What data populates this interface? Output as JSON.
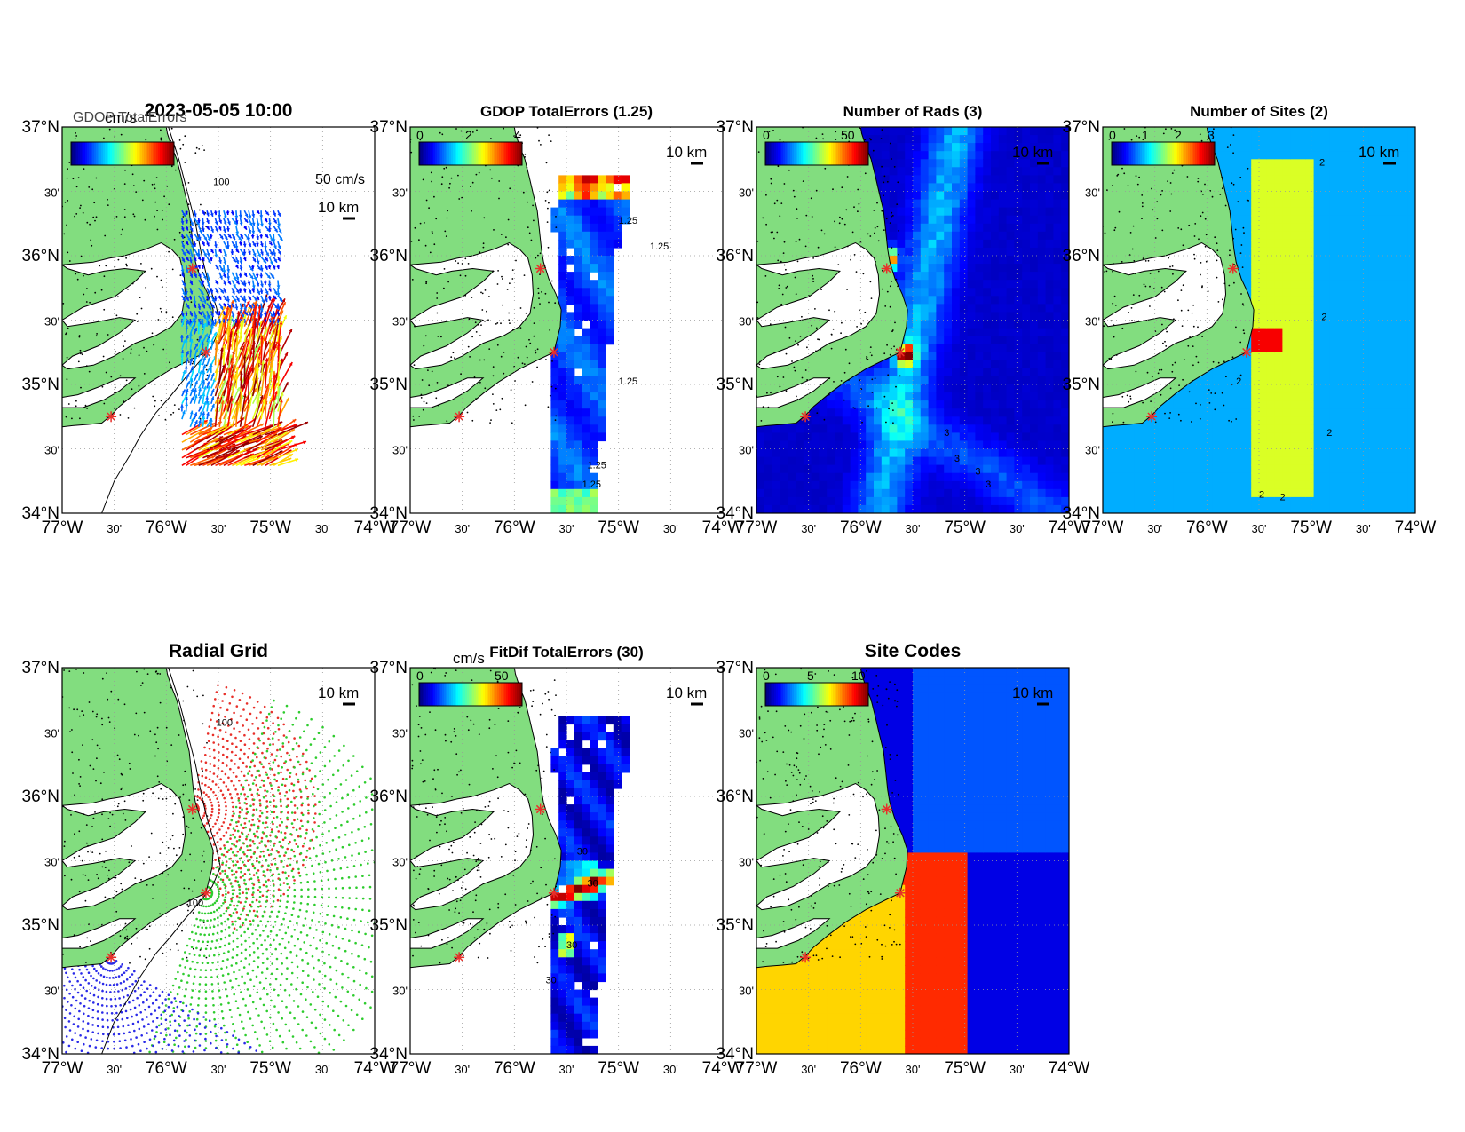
{
  "figure": {
    "panels": [
      {
        "id": "currents",
        "title": "2023-05-05 10:00",
        "title_overlap": "GDOP TotalErrors",
        "colorbar_unit": "cm/s",
        "colorbar_ticks": [],
        "scale_vector_label": "50 cm/s",
        "scale_bar_label": "10 km",
        "contour_labels": [
          "100"
        ],
        "colormap": "jet",
        "field": "vectors"
      },
      {
        "id": "gdop",
        "title": "GDOP TotalErrors (1.25)",
        "colorbar_unit": "",
        "colorbar_ticks": [
          "0",
          "2",
          "4"
        ],
        "scale_bar_label": "10 km",
        "contour_labels": [
          "1.25",
          "1.25",
          "1.25",
          "1.25",
          "1.25"
        ],
        "colormap": "jet",
        "field": "gdop"
      },
      {
        "id": "nrads",
        "title": "Number of Rads (3)",
        "colorbar_unit": "",
        "colorbar_ticks": [
          "0",
          "50"
        ],
        "scale_bar_label": "10 km",
        "contour_labels": [
          "3",
          "3",
          "3",
          "3"
        ],
        "colormap": "jet",
        "field": "nrads"
      },
      {
        "id": "nsites",
        "title": "Number of Sites (2)",
        "colorbar_unit": "",
        "colorbar_ticks": [
          "0",
          "1",
          "2",
          "3"
        ],
        "scale_bar_label": "10 km",
        "contour_labels": [
          "2",
          "2",
          "2",
          "2",
          "2",
          "2"
        ],
        "colormap": "jet",
        "field": "nsites"
      },
      {
        "id": "radialgrid",
        "title": "Radial Grid",
        "colorbar_unit": "",
        "colorbar_ticks": [],
        "scale_bar_label": "10 km",
        "contour_labels": [
          "100",
          "100"
        ],
        "colormap": "none",
        "field": "radialgrid"
      },
      {
        "id": "fitdif",
        "title": "FitDif TotalErrors (30)",
        "colorbar_unit": "cm/s",
        "colorbar_ticks": [
          "0",
          "50"
        ],
        "scale_bar_label": "10 km",
        "contour_labels": [
          "30",
          "30",
          "30",
          "30"
        ],
        "colormap": "jet",
        "field": "fitdif"
      },
      {
        "id": "sitecodes",
        "title": "Site Codes",
        "colorbar_unit": "",
        "colorbar_ticks": [
          "0",
          "5",
          "10"
        ],
        "scale_bar_label": "10 km",
        "contour_labels": [],
        "colormap": "jet",
        "field": "sitecodes"
      }
    ],
    "axes": {
      "lon_ticks": [
        "77°W",
        "30'",
        "76°W",
        "30'",
        "75°W",
        "30'",
        "74°W"
      ],
      "lat_ticks": [
        "37°N",
        "30'",
        "36°N",
        "30'",
        "35°N",
        "30'",
        "34°N"
      ],
      "lon_range": [
        -77,
        -74
      ],
      "lat_range": [
        34,
        37
      ]
    },
    "colors": {
      "land": "#82dd7f",
      "ocean": "#ffffff",
      "coast": "#000000",
      "site_marker": "#e8302a",
      "radial_site_1": "#e8302a",
      "radial_site_2": "#2ecc2e",
      "radial_site_3": "#2a2ae8"
    },
    "sites": [
      {
        "lon": -75.75,
        "lat": 35.9
      },
      {
        "lon": -75.62,
        "lat": 35.25
      },
      {
        "lon": -76.53,
        "lat": 34.75
      }
    ]
  }
}
